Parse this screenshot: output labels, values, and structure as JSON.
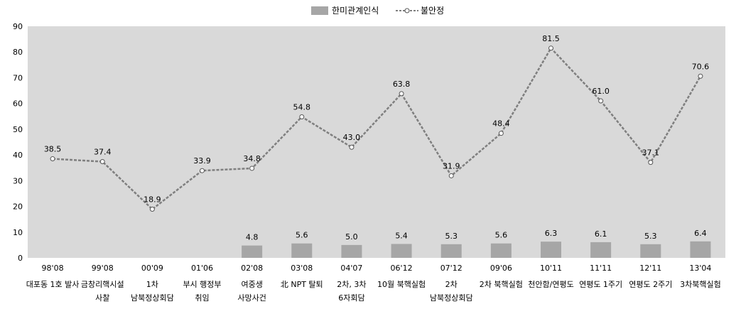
{
  "chart_data": {
    "type": "bar+line",
    "categories": [
      {
        "date": "98'08",
        "event": [
          "대포동 1호 발사"
        ]
      },
      {
        "date": "99'08",
        "event": [
          "금창리핵시설",
          "사찰"
        ]
      },
      {
        "date": "00'09",
        "event": [
          "1차",
          "남북정상회담"
        ]
      },
      {
        "date": "01'06",
        "event": [
          "부시 행정부",
          "취임"
        ]
      },
      {
        "date": "02'08",
        "event": [
          "여중생",
          "사망사건"
        ]
      },
      {
        "date": "03'08",
        "event": [
          "北 NPT 탈퇴"
        ]
      },
      {
        "date": "04'07",
        "event": [
          "2차, 3차",
          "6자회담"
        ]
      },
      {
        "date": "06'12",
        "event": [
          "10월 북핵실험"
        ]
      },
      {
        "date": "07'12",
        "event": [
          "2차",
          "남북정상회담"
        ]
      },
      {
        "date": "09'06",
        "event": [
          "2차 북핵실험"
        ]
      },
      {
        "date": "10'11",
        "event": [
          "천안함/연평도"
        ]
      },
      {
        "date": "11'11",
        "event": [
          "연평도 1주기"
        ]
      },
      {
        "date": "12'11",
        "event": [
          "연평도 2주기"
        ]
      },
      {
        "date": "13'04",
        "event": [
          "3차북핵실험"
        ]
      }
    ],
    "series": [
      {
        "name": "한미관계인식",
        "type": "bar",
        "color": "#a6a6a6",
        "values": [
          null,
          null,
          null,
          null,
          4.8,
          5.6,
          5.0,
          5.4,
          5.3,
          5.6,
          6.3,
          6.1,
          5.3,
          6.4
        ]
      },
      {
        "name": "불안정",
        "type": "line",
        "color": "#7f7f7f",
        "values": [
          38.5,
          37.4,
          18.9,
          33.9,
          34.8,
          54.8,
          43.0,
          63.8,
          31.9,
          48.4,
          81.5,
          61.0,
          37.1,
          70.6
        ]
      }
    ],
    "ylim": [
      0,
      90
    ],
    "yticks": [
      0,
      10,
      20,
      30,
      40,
      50,
      60,
      70,
      80,
      90
    ],
    "plot_background": "#d9d9d9",
    "legend_position": "top-center",
    "grid": false
  }
}
